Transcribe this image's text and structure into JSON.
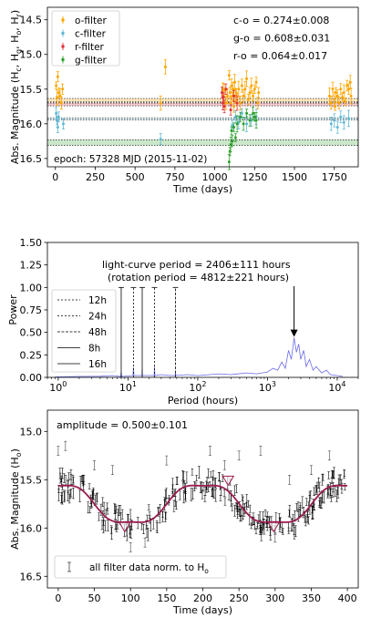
{
  "chart_data": [
    {
      "type": "scatter",
      "xlabel": "Time (days)",
      "ylabel": "Abs. Magnitude (H",
      "ylabel_subs": [
        [
          "c",
          ", H"
        ],
        [
          "g",
          ", H"
        ],
        [
          "o",
          ", H"
        ],
        [
          "r",
          ")"
        ]
      ],
      "xlim": [
        -50,
        1900
      ],
      "ylim": [
        16.62,
        14.32
      ],
      "y_inverted": true,
      "xticks": [
        0,
        250,
        500,
        750,
        1000,
        1250,
        1500,
        1750
      ],
      "yticks": [
        14.5,
        15.0,
        15.5,
        16.0,
        16.5
      ],
      "legend": [
        "o-filter",
        "c-filter",
        "r-filter",
        "g-filter"
      ],
      "legend_position": "upper-left",
      "colors": {
        "o": "#ffa500",
        "c": "#5fb8d4",
        "r": "#e0313a",
        "g": "#2ca02c"
      },
      "stats": [
        "c-o  = 0.274±0.008",
        "g-o  = 0.608±0.031",
        "r-o  = 0.064±0.017"
      ],
      "epoch_label": "epoch: 57328 MJD (2015-11-02)",
      "bands": [
        {
          "filter": "o",
          "center": 15.66,
          "half_width": 0.025
        },
        {
          "filter": "r",
          "center": 15.72,
          "half_width": 0.02
        },
        {
          "filter": "c",
          "center": 15.93,
          "half_width": 0.012
        },
        {
          "filter": "g",
          "center": 16.27,
          "half_width": 0.04
        }
      ],
      "series": [
        {
          "name": "o-filter",
          "filter": "o",
          "points": [
            [
              5,
              15.45
            ],
            [
              10,
              15.62
            ],
            [
              15,
              15.32
            ],
            [
              22,
              15.55
            ],
            [
              30,
              15.6
            ],
            [
              38,
              15.7
            ],
            [
              45,
              15.5
            ],
            [
              690,
              15.18
            ],
            [
              660,
              15.7
            ],
            [
              1050,
              15.5
            ],
            [
              1060,
              15.52
            ],
            [
              1070,
              15.7
            ],
            [
              1080,
              15.6
            ],
            [
              1090,
              15.3
            ],
            [
              1095,
              15.55
            ],
            [
              1100,
              15.7
            ],
            [
              1105,
              15.45
            ],
            [
              1110,
              15.6
            ],
            [
              1115,
              15.5
            ],
            [
              1120,
              15.75
            ],
            [
              1125,
              15.4
            ],
            [
              1130,
              15.6
            ],
            [
              1135,
              15.55
            ],
            [
              1140,
              15.65
            ],
            [
              1150,
              15.5
            ],
            [
              1160,
              15.7
            ],
            [
              1170,
              15.45
            ],
            [
              1180,
              15.6
            ],
            [
              1190,
              15.5
            ],
            [
              1200,
              15.35
            ],
            [
              1210,
              15.65
            ],
            [
              1220,
              15.55
            ],
            [
              1230,
              15.45
            ],
            [
              1240,
              15.6
            ],
            [
              1250,
              15.5
            ],
            [
              1260,
              15.4
            ],
            [
              1270,
              15.7
            ],
            [
              1275,
              15.55
            ],
            [
              1720,
              15.6
            ],
            [
              1730,
              15.7
            ],
            [
              1740,
              15.5
            ],
            [
              1750,
              15.65
            ],
            [
              1755,
              15.75
            ],
            [
              1760,
              15.55
            ],
            [
              1770,
              15.6
            ],
            [
              1780,
              15.7
            ],
            [
              1790,
              15.5
            ],
            [
              1800,
              15.62
            ],
            [
              1810,
              15.55
            ],
            [
              1820,
              15.68
            ],
            [
              1830,
              15.45
            ],
            [
              1840,
              15.5
            ],
            [
              1850,
              15.4
            ],
            [
              1855,
              15.6
            ]
          ]
        },
        {
          "name": "c-filter",
          "filter": "c",
          "points": [
            [
              5,
              15.85
            ],
            [
              10,
              15.95
            ],
            [
              15,
              16.05
            ],
            [
              20,
              15.9
            ],
            [
              50,
              16.0
            ],
            [
              660,
              16.22
            ],
            [
              1110,
              16.02
            ],
            [
              1130,
              15.9
            ],
            [
              1150,
              15.98
            ],
            [
              1170,
              15.85
            ],
            [
              1200,
              16.0
            ],
            [
              1230,
              15.95
            ],
            [
              1260,
              15.9
            ],
            [
              1730,
              16.0
            ],
            [
              1750,
              15.95
            ],
            [
              1770,
              16.05
            ],
            [
              1790,
              15.9
            ],
            [
              1810,
              15.98
            ],
            [
              1840,
              15.92
            ]
          ]
        },
        {
          "name": "r-filter",
          "filter": "r",
          "points": [
            [
              1045,
              15.55
            ],
            [
              1050,
              15.7
            ],
            [
              1055,
              15.62
            ],
            [
              1060,
              15.75
            ],
            [
              1070,
              15.5
            ],
            [
              1100,
              15.8
            ],
            [
              1120,
              15.6
            ],
            [
              1140,
              15.7
            ]
          ]
        },
        {
          "name": "g-filter",
          "filter": "g",
          "points": [
            [
              1090,
              16.55
            ],
            [
              1095,
              16.4
            ],
            [
              1100,
              16.3
            ],
            [
              1105,
              16.1
            ],
            [
              1110,
              16.25
            ],
            [
              1120,
              16.05
            ],
            [
              1130,
              16.2
            ],
            [
              1140,
              16.0
            ],
            [
              1160,
              15.9
            ],
            [
              1180,
              16.0
            ],
            [
              1200,
              15.85
            ],
            [
              1220,
              15.95
            ],
            [
              1240,
              15.85
            ],
            [
              1250,
              15.9
            ],
            [
              1260,
              15.95
            ]
          ]
        }
      ]
    },
    {
      "type": "line",
      "xlabel": "Period (hours)",
      "ylabel": "Power",
      "x_scale": "log",
      "xlim": [
        0.7,
        20000
      ],
      "ylim": [
        0.0,
        1.5
      ],
      "xtick_labels": [
        "10^0",
        "10^1",
        "10^2",
        "10^3",
        "10^4"
      ],
      "xticks": [
        1,
        10,
        100,
        1000,
        10000
      ],
      "yticks": [
        0.0,
        0.25,
        0.5,
        0.75,
        1.0,
        1.25,
        1.5
      ],
      "ytick_labels": [
        "0.00",
        "0.25",
        "0.50",
        "0.75",
        "1.00",
        "1.25",
        "1.50"
      ],
      "annotation": [
        "light-curve period = 2406±111 hours",
        "(rotation period = 4812±221 hours)"
      ],
      "annotation_x": 2406,
      "annotation_y": 0.44,
      "periodogram_color": "#6a6ae6",
      "periodogram": [
        [
          0.9,
          0.005
        ],
        [
          2,
          0.01
        ],
        [
          4,
          0.012
        ],
        [
          6,
          0.02
        ],
        [
          7.9,
          0.01
        ],
        [
          8,
          0.06
        ],
        [
          8.1,
          0.01
        ],
        [
          11.8,
          0.02
        ],
        [
          12,
          0.11
        ],
        [
          12.2,
          0.02
        ],
        [
          15.9,
          0.02
        ],
        [
          16,
          0.09
        ],
        [
          16.1,
          0.02
        ],
        [
          23.7,
          0.02
        ],
        [
          24,
          0.12
        ],
        [
          24.3,
          0.02
        ],
        [
          30,
          0.03
        ],
        [
          40,
          0.02
        ],
        [
          47.5,
          0.02
        ],
        [
          48,
          0.06
        ],
        [
          48.5,
          0.02
        ],
        [
          70,
          0.03
        ],
        [
          100,
          0.02
        ],
        [
          150,
          0.03
        ],
        [
          200,
          0.04
        ],
        [
          300,
          0.03
        ],
        [
          500,
          0.05
        ],
        [
          700,
          0.04
        ],
        [
          1000,
          0.06
        ],
        [
          1200,
          0.1
        ],
        [
          1400,
          0.08
        ],
        [
          1600,
          0.17
        ],
        [
          1800,
          0.1
        ],
        [
          2000,
          0.3
        ],
        [
          2200,
          0.2
        ],
        [
          2406,
          0.44
        ],
        [
          2600,
          0.28
        ],
        [
          2800,
          0.37
        ],
        [
          3000,
          0.2
        ],
        [
          3300,
          0.3
        ],
        [
          3600,
          0.12
        ],
        [
          4000,
          0.2
        ],
        [
          4500,
          0.08
        ],
        [
          5000,
          0.12
        ],
        [
          6000,
          0.05
        ],
        [
          7000,
          0.08
        ],
        [
          8000,
          0.03
        ],
        [
          10000,
          0.02
        ],
        [
          12000,
          0.01
        ]
      ],
      "markers": [
        {
          "label": "12h",
          "period": 12,
          "dash": "2,2"
        },
        {
          "label": "24h",
          "period": 24,
          "dash": "2,2"
        },
        {
          "label": "48h",
          "period": 48,
          "dash": "3,1.5"
        },
        {
          "label": "8h",
          "period": 8,
          "dash": ""
        },
        {
          "label": "16h",
          "period": 16,
          "dash": ""
        }
      ],
      "marker_height": 1.0
    },
    {
      "type": "scatter",
      "xlabel": "Time (days)",
      "ylabel": "Abs. Magnitude (H",
      "ylabel_sub": "o",
      "xlim": [
        -15,
        415
      ],
      "ylim": [
        16.62,
        14.78
      ],
      "y_inverted": true,
      "xticks": [
        0,
        50,
        100,
        150,
        200,
        250,
        300,
        350,
        400
      ],
      "yticks": [
        15.0,
        15.5,
        16.0,
        16.5
      ],
      "amplitude": "amplitude  = 0.500±0.101",
      "legend": "all filter data norm. to H",
      "legend_sub": "o",
      "fit_color": "#9b1b4f",
      "fit": {
        "mean": 15.75,
        "amp": 0.25,
        "period": 200.5,
        "phase_day": 100
      },
      "triangles": [
        [
          92,
          16.0
        ],
        [
          235,
          15.52
        ],
        [
          298,
          16.0
        ]
      ],
      "outliers": [
        [
          0,
          15.2
        ],
        [
          10,
          15.15
        ],
        [
          50,
          15.35
        ],
        [
          75,
          15.4
        ],
        [
          100,
          16.2
        ],
        [
          120,
          16.15
        ],
        [
          150,
          15.3
        ],
        [
          210,
          15.2
        ],
        [
          230,
          15.35
        ],
        [
          250,
          15.25
        ],
        [
          280,
          15.2
        ],
        [
          300,
          16.1
        ],
        [
          320,
          15.5
        ],
        [
          350,
          15.4
        ],
        [
          375,
          15.25
        ],
        [
          390,
          15.5
        ]
      ]
    }
  ]
}
